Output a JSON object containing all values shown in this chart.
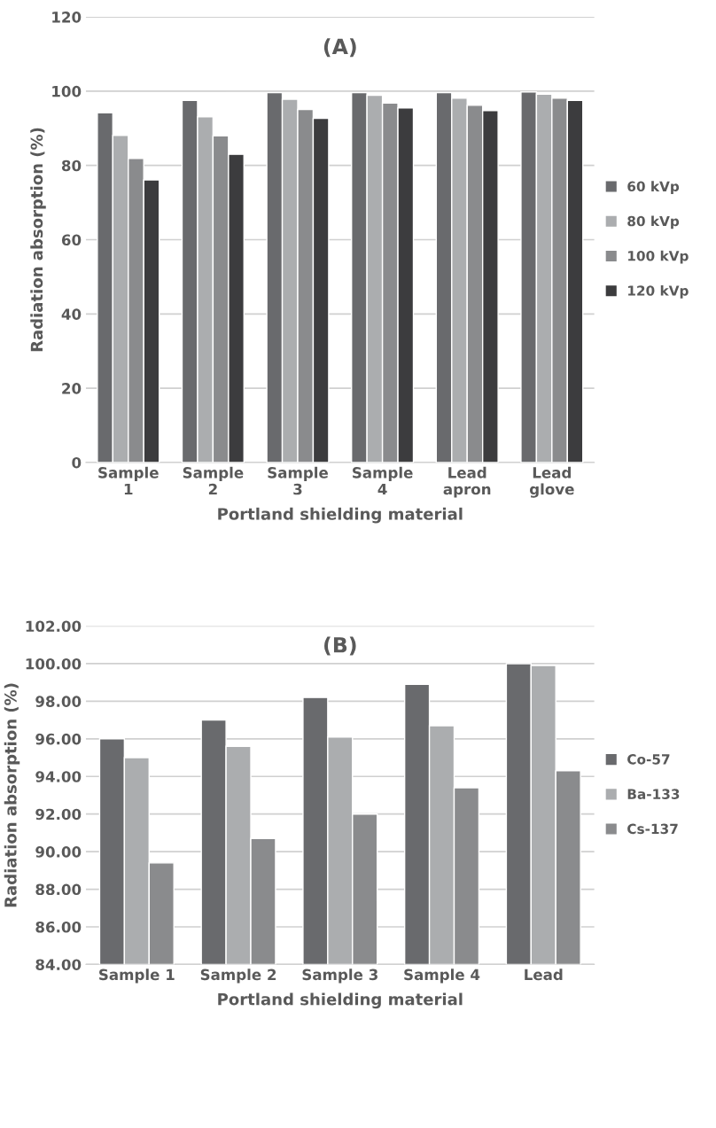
{
  "chart_data": [
    {
      "type": "bar",
      "title": "(A)",
      "xlabel": "Portland shielding material",
      "ylabel": "Radiation absorption (%)",
      "categories": [
        "Sample\n1",
        "Sample\n2",
        "Sample\n3",
        "Sample\n4",
        "Lead\napron",
        "Lead\nglove"
      ],
      "series": [
        {
          "name": "60 kVp",
          "color": "#696a6d",
          "values": [
            94.2,
            97.5,
            99.6,
            99.6,
            99.6,
            99.8
          ]
        },
        {
          "name": "80 kVp",
          "color": "#abadaf",
          "values": [
            88.1,
            93.1,
            97.8,
            98.9,
            98.1,
            99.2
          ]
        },
        {
          "name": "100 kVp",
          "color": "#8a8b8d",
          "values": [
            81.9,
            88.0,
            95.1,
            96.8,
            96.2,
            98.1
          ]
        },
        {
          "name": "120 kVp",
          "color": "#3c3c3e",
          "values": [
            76.1,
            83.0,
            92.7,
            95.5,
            94.8,
            97.5
          ]
        }
      ],
      "ylim": [
        0,
        120
      ],
      "yticks": [
        0,
        20,
        40,
        60,
        80,
        100,
        120
      ],
      "grid": "y",
      "legend": "right"
    },
    {
      "type": "bar",
      "title": "(B)",
      "xlabel": "Portland shielding material",
      "ylabel": "Radiation absorption (%)",
      "categories": [
        "Sample 1",
        "Sample 2",
        "Sample 3",
        "Sample 4",
        "Lead"
      ],
      "series": [
        {
          "name": "Co-57",
          "color": "#696a6d",
          "values": [
            96.0,
            97.0,
            98.2,
            98.9,
            100.0
          ]
        },
        {
          "name": "Ba-133",
          "color": "#abadaf",
          "values": [
            95.0,
            95.6,
            96.1,
            96.7,
            99.9
          ]
        },
        {
          "name": "Cs-137",
          "color": "#8a8b8d",
          "values": [
            89.4,
            90.7,
            92.0,
            93.4,
            94.3
          ]
        }
      ],
      "ylim": [
        84,
        102
      ],
      "yticks": [
        {
          "value": 84,
          "label": "84.00"
        },
        {
          "value": 86,
          "label": "86.00"
        },
        {
          "value": 88,
          "label": "88.00"
        },
        {
          "value": 90,
          "label": "90.00"
        },
        {
          "value": 92,
          "label": "92.00"
        },
        {
          "value": 94,
          "label": "94.00"
        },
        {
          "value": 96,
          "label": "96.00"
        },
        {
          "value": 98,
          "label": "98.00"
        },
        {
          "value": 100,
          "label": "100.00"
        },
        {
          "value": 102,
          "label": "102.00"
        }
      ],
      "grid": "y",
      "legend": "right"
    }
  ]
}
